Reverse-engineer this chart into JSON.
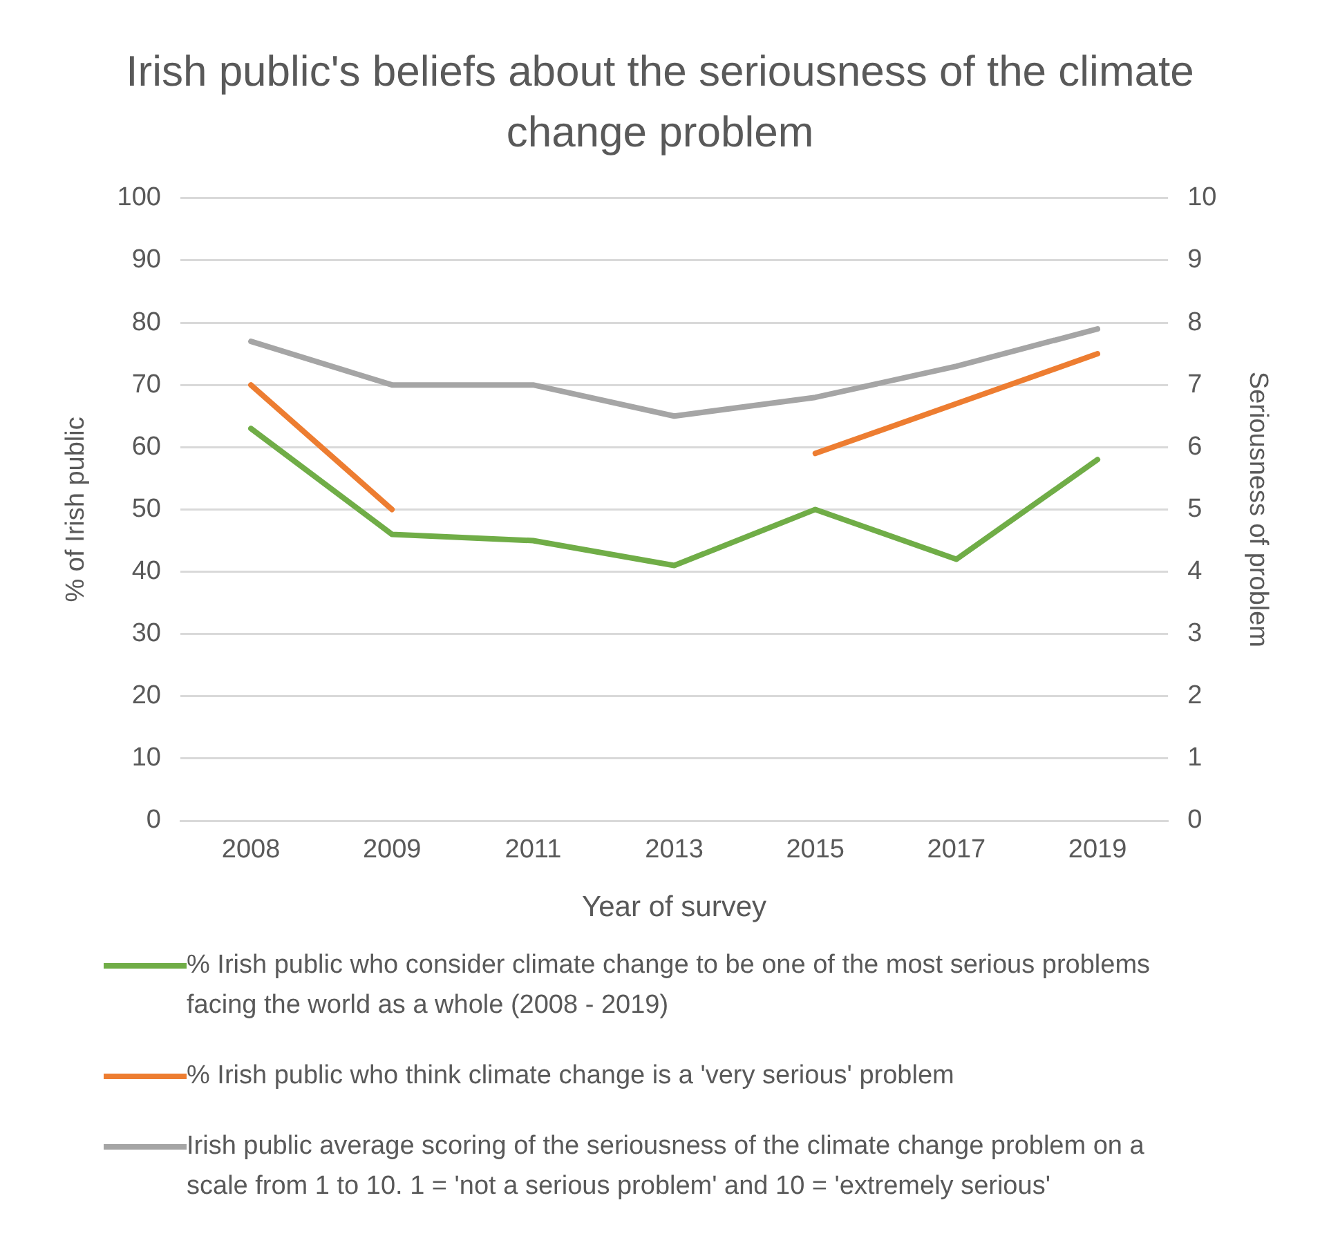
{
  "chart_data": {
    "type": "line",
    "title": "Irish public's beliefs about the seriousness of the climate change problem",
    "xlabel": "Year of survey",
    "ylabel": "% of Irish public",
    "y2label": "Seriousness of problem",
    "categories": [
      "2008",
      "2009",
      "2011",
      "2013",
      "2015",
      "2017",
      "2019"
    ],
    "series": [
      {
        "name": "% Irish public who consider climate change to be one of the most serious problems facing the world as a whole (2008 - 2019)",
        "color": "#70ad47",
        "values": [
          63,
          46,
          45,
          41,
          50,
          42,
          58
        ]
      },
      {
        "name": "% Irish public who think climate change is a 'very serious' problem",
        "color": "#ed7d31",
        "values": [
          70,
          50,
          null,
          null,
          59,
          67,
          75
        ]
      },
      {
        "name": "Irish public average scoring of the seriousness of the climate change problem on a scale from 1 to 10. 1 = 'not a serious problem' and 10 = 'extremely serious'",
        "color": "#a5a5a5",
        "axis": "y2",
        "values": [
          7.7,
          7.0,
          7.0,
          6.5,
          6.8,
          7.3,
          7.9
        ]
      }
    ],
    "ylim": [
      0,
      100
    ],
    "yticks": [
      0,
      10,
      20,
      30,
      40,
      50,
      60,
      70,
      80,
      90,
      100
    ],
    "y2lim": [
      0,
      10
    ],
    "y2ticks": [
      0,
      1,
      2,
      3,
      4,
      5,
      6,
      7,
      8,
      9,
      10
    ],
    "grid": "y",
    "legend": "bottom",
    "marker": "none",
    "line_style": "solid"
  }
}
